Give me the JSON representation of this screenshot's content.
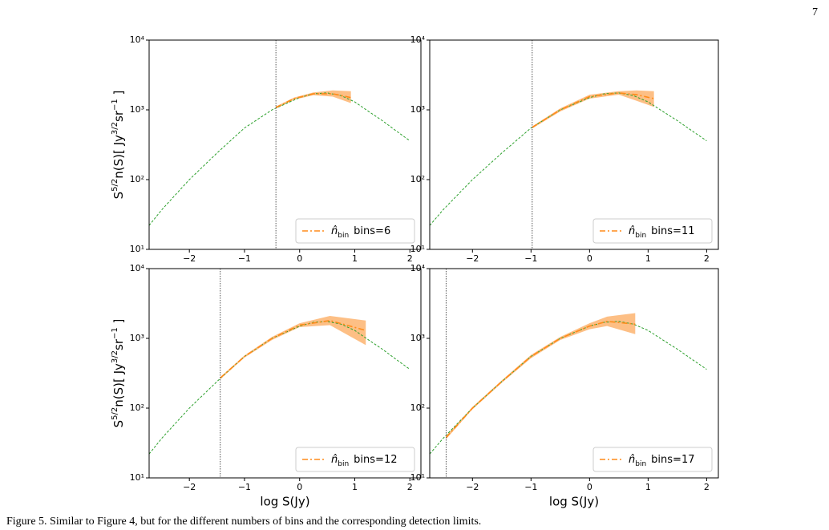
{
  "page_number": "7",
  "caption": "Figure 5. Similar to Figure 4, but for the different numbers of bins and the corresponding detection limits.",
  "chart_data": [
    {
      "type": "line",
      "yscale": "log",
      "xlim": [
        -2.73,
        2.2
      ],
      "ylim": [
        10,
        10000
      ],
      "xticks": [
        {
          "value": -2,
          "label": "−2"
        },
        {
          "value": -1,
          "label": "−1"
        },
        0,
        1,
        2
      ],
      "yticks": [
        {
          "value": 10,
          "label": "10¹"
        },
        {
          "value": 100,
          "label": "10²"
        },
        {
          "value": 1000,
          "label": "10³"
        },
        {
          "value": 10000,
          "label": "10⁴"
        }
      ],
      "ylabel_parts": [
        "S",
        "5/2",
        "n(S)[ Jy",
        "3/2",
        "sr",
        "−1",
        " ]"
      ],
      "cutoff": -0.43,
      "legend": "lower right",
      "legend_note": "bins=6",
      "series": [
        {
          "color": "#2ca02c",
          "style": "dashed",
          "x": [
            -2.73,
            -2.5,
            -2,
            -1.5,
            -1,
            -0.5,
            0,
            0.25,
            0.5,
            0.75,
            1,
            1.25,
            1.5,
            1.75,
            2
          ],
          "values": [
            22,
            37,
            100,
            240,
            550,
            1000,
            1500,
            1700,
            1750,
            1600,
            1300,
            950,
            700,
            500,
            360
          ]
        },
        {
          "name": "n̂",
          "name_sub": "bin",
          "color": "#ff8c1a",
          "band_color": "#fdbf85",
          "style": "dashdot",
          "x": [
            -0.43,
            -0.1,
            0.25,
            0.6,
            0.93
          ],
          "values": [
            1080,
            1450,
            1700,
            1700,
            1500
          ],
          "lower": [
            1040,
            1400,
            1620,
            1550,
            1250
          ],
          "upper": [
            1120,
            1500,
            1780,
            1900,
            1850
          ]
        }
      ]
    },
    {
      "type": "line",
      "yscale": "log",
      "xlim": [
        -2.73,
        2.2
      ],
      "ylim": [
        10,
        10000
      ],
      "xticks": [
        {
          "value": -2,
          "label": "−2"
        },
        {
          "value": -1,
          "label": "−1"
        },
        0,
        1,
        2
      ],
      "yticks": [
        {
          "value": 10,
          "label": "10¹"
        },
        {
          "value": 100,
          "label": "10²"
        },
        {
          "value": 1000,
          "label": "10³"
        },
        {
          "value": 10000,
          "label": "10⁴"
        }
      ],
      "cutoff": -0.98,
      "legend": "lower right",
      "legend_note": "bins=11",
      "series": [
        {
          "color": "#2ca02c",
          "style": "dashed",
          "x": [
            -2.73,
            -2.5,
            -2,
            -1.5,
            -1,
            -0.5,
            0,
            0.25,
            0.5,
            0.75,
            1,
            1.25,
            1.5,
            1.75,
            2
          ],
          "values": [
            22,
            37,
            100,
            240,
            550,
            1000,
            1500,
            1700,
            1750,
            1600,
            1300,
            950,
            700,
            500,
            360
          ]
        },
        {
          "name": "n̂",
          "name_sub": "bin",
          "color": "#ff8c1a",
          "band_color": "#fdbf85",
          "style": "dashdot",
          "x": [
            -0.98,
            -0.5,
            0,
            0.5,
            0.8,
            1.1
          ],
          "values": [
            560,
            1000,
            1550,
            1750,
            1650,
            1450
          ],
          "lower": [
            540,
            950,
            1450,
            1650,
            1350,
            1100
          ],
          "upper": [
            580,
            1050,
            1650,
            1850,
            1900,
            1850
          ]
        }
      ]
    },
    {
      "type": "line",
      "yscale": "log",
      "xlim": [
        -2.73,
        2.2
      ],
      "ylim": [
        10,
        10000
      ],
      "xticks": [
        {
          "value": -2,
          "label": "−2"
        },
        {
          "value": -1,
          "label": "−1"
        },
        0,
        1,
        2
      ],
      "yticks": [
        {
          "value": 10,
          "label": "10¹"
        },
        {
          "value": 100,
          "label": "10²"
        },
        {
          "value": 1000,
          "label": "10³"
        },
        {
          "value": 10000,
          "label": "10⁴"
        }
      ],
      "ylabel_parts": [
        "S",
        "5/2",
        "n(S)[ Jy",
        "3/2",
        "sr",
        "−1",
        " ]"
      ],
      "xlabel": "log S(Jy)",
      "cutoff": -1.44,
      "legend": "lower right",
      "legend_note": "bins=12",
      "series": [
        {
          "color": "#2ca02c",
          "style": "dashed",
          "x": [
            -2.73,
            -2.5,
            -2,
            -1.5,
            -1,
            -0.5,
            0,
            0.25,
            0.5,
            0.75,
            1,
            1.25,
            1.5,
            1.75,
            2
          ],
          "values": [
            22,
            37,
            100,
            240,
            550,
            1000,
            1500,
            1700,
            1750,
            1600,
            1300,
            950,
            700,
            500,
            360
          ]
        },
        {
          "name": "n̂",
          "name_sub": "bin",
          "color": "#ff8c1a",
          "band_color": "#fdbf85",
          "style": "dashdot",
          "x": [
            -1.44,
            -1,
            -0.5,
            0,
            0.55,
            1.2
          ],
          "values": [
            270,
            550,
            1000,
            1550,
            1800,
            1300
          ],
          "lower": [
            260,
            530,
            950,
            1450,
            1550,
            800
          ],
          "upper": [
            280,
            570,
            1050,
            1650,
            2100,
            1800
          ]
        }
      ]
    },
    {
      "type": "line",
      "yscale": "log",
      "xlim": [
        -2.73,
        2.2
      ],
      "ylim": [
        10,
        10000
      ],
      "xticks": [
        {
          "value": -2,
          "label": "−2"
        },
        {
          "value": -1,
          "label": "−1"
        },
        0,
        1,
        2
      ],
      "yticks": [
        {
          "value": 10,
          "label": "10¹"
        },
        {
          "value": 100,
          "label": "10²"
        },
        {
          "value": 1000,
          "label": "10³"
        },
        {
          "value": 10000,
          "label": "10⁴"
        }
      ],
      "xlabel": "log S(Jy)",
      "cutoff": -2.45,
      "legend": "lower right",
      "legend_note": "bins=17",
      "series": [
        {
          "color": "#2ca02c",
          "style": "dashed",
          "x": [
            -2.73,
            -2.5,
            -2,
            -1.5,
            -1,
            -0.5,
            0,
            0.25,
            0.5,
            0.75,
            1,
            1.25,
            1.5,
            1.75,
            2
          ],
          "values": [
            22,
            37,
            100,
            240,
            550,
            1000,
            1500,
            1700,
            1750,
            1600,
            1300,
            950,
            700,
            500,
            360
          ]
        },
        {
          "name": "n̂",
          "name_sub": "bin",
          "color": "#ff8c1a",
          "band_color": "#fdbf85",
          "style": "dashdot",
          "x": [
            -2.45,
            -2,
            -1.5,
            -1,
            -0.5,
            0,
            0.3,
            0.78
          ],
          "values": [
            38,
            100,
            240,
            550,
            1000,
            1500,
            1750,
            1600
          ],
          "lower": [
            36,
            96,
            230,
            520,
            950,
            1350,
            1500,
            1150
          ],
          "upper": [
            40,
            104,
            250,
            580,
            1050,
            1650,
            2050,
            2300
          ]
        }
      ]
    }
  ]
}
